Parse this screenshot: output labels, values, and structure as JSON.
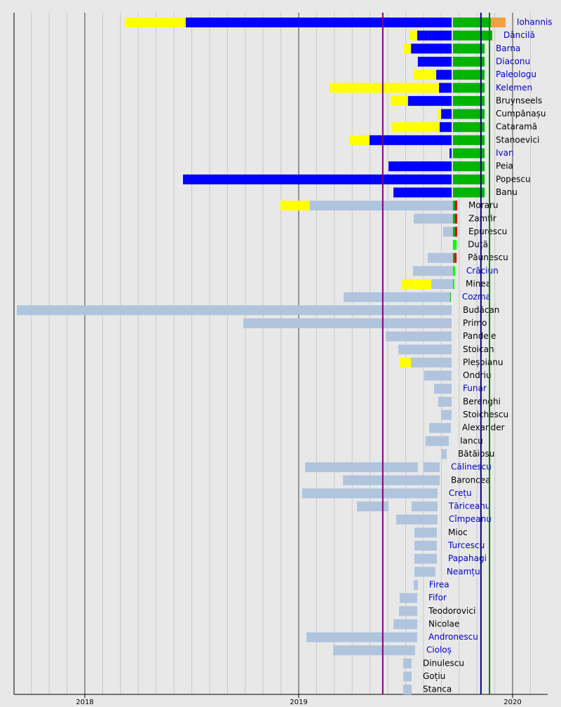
{
  "chart_data": {
    "type": "timeline",
    "xlim": [
      2017.669,
      2020.164
    ],
    "xticks": [
      2018,
      2019,
      2020
    ],
    "minor_grid_per_tick": 12,
    "markers": [
      {
        "value": 2019.393,
        "color": "#800080"
      },
      {
        "value": 2019.852,
        "color": "#000080"
      },
      {
        "value": 2019.892,
        "color": "#008000"
      }
    ],
    "rows": [
      {
        "name": "Iohannis",
        "label_color": "#0000cc",
        "segments": [
          [
            2018.187,
            2018.472,
            "#ffff00"
          ],
          [
            2018.472,
            2019.715,
            "#0000ff"
          ],
          [
            2019.721,
            2019.898,
            "#00b400"
          ],
          [
            2019.898,
            2019.967,
            "#f4a040"
          ]
        ]
      },
      {
        "name": "Dăncilă",
        "label_color": "#0000cc",
        "segments": [
          [
            2019.518,
            2019.554,
            "#ffff00"
          ],
          [
            2019.554,
            2019.715,
            "#0000ff"
          ],
          [
            2019.721,
            2019.905,
            "#00b400"
          ]
        ]
      },
      {
        "name": "Barna",
        "label_color": "#0000cc",
        "segments": [
          [
            2019.492,
            2019.525,
            "#ffff00"
          ],
          [
            2019.525,
            2019.715,
            "#0000ff"
          ],
          [
            2019.721,
            2019.869,
            "#00b400"
          ]
        ]
      },
      {
        "name": "Diaconu",
        "label_color": "#0000cc",
        "segments": [
          [
            2019.557,
            2019.715,
            "#0000ff"
          ],
          [
            2019.721,
            2019.869,
            "#00b400"
          ]
        ]
      },
      {
        "name": "Paleologu",
        "label_color": "#0000cc",
        "segments": [
          [
            2019.538,
            2019.643,
            "#ffff00"
          ],
          [
            2019.643,
            2019.715,
            "#0000ff"
          ],
          [
            2019.721,
            2019.869,
            "#00b400"
          ]
        ]
      },
      {
        "name": "Kelemen",
        "label_color": "#0000cc",
        "segments": [
          [
            2019.144,
            2019.656,
            "#ffff00"
          ],
          [
            2019.656,
            2019.715,
            "#0000ff"
          ],
          [
            2019.721,
            2019.869,
            "#00b400"
          ]
        ]
      },
      {
        "name": "Bruynseels",
        "label_color": "#000000",
        "segments": [
          [
            2019.43,
            2019.511,
            "#ffff00"
          ],
          [
            2019.511,
            2019.715,
            "#0000ff"
          ],
          [
            2019.721,
            2019.869,
            "#00b400"
          ]
        ]
      },
      {
        "name": "Cumpănașu",
        "label_color": "#000000",
        "segments": [
          [
            2019.652,
            2019.666,
            "#ffff00"
          ],
          [
            2019.666,
            2019.715,
            "#0000ff"
          ],
          [
            2019.721,
            2019.869,
            "#00b400"
          ]
        ]
      },
      {
        "name": "Cataramă",
        "label_color": "#000000",
        "segments": [
          [
            2019.436,
            2019.659,
            "#ffff00"
          ],
          [
            2019.659,
            2019.715,
            "#0000ff"
          ],
          [
            2019.721,
            2019.869,
            "#00b400"
          ]
        ]
      },
      {
        "name": "Stanoevici",
        "label_color": "#000000",
        "segments": [
          [
            2019.236,
            2019.331,
            "#ffff00"
          ],
          [
            2019.331,
            2019.715,
            "#0000ff"
          ],
          [
            2019.721,
            2019.869,
            "#00b400"
          ]
        ]
      },
      {
        "name": "Ivan",
        "label_color": "#0000cc",
        "segments": [
          [
            2019.705,
            2019.715,
            "#0000ff"
          ],
          [
            2019.721,
            2019.869,
            "#00b400"
          ]
        ]
      },
      {
        "name": "Peia",
        "label_color": "#000000",
        "segments": [
          [
            2019.42,
            2019.715,
            "#0000ff"
          ],
          [
            2019.721,
            2019.869,
            "#00b400"
          ]
        ]
      },
      {
        "name": "Popescu",
        "label_color": "#000000",
        "segments": [
          [
            2018.459,
            2019.715,
            "#0000ff"
          ],
          [
            2019.721,
            2019.869,
            "#00b400"
          ]
        ]
      },
      {
        "name": "Banu",
        "label_color": "#000000",
        "segments": [
          [
            2019.443,
            2019.715,
            "#0000ff"
          ],
          [
            2019.721,
            2019.869,
            "#00b400"
          ]
        ]
      },
      {
        "name": "Moraru",
        "label_color": "#000000",
        "segments": [
          [
            2018.915,
            2019.052,
            "#ffff00"
          ],
          [
            2019.052,
            2019.721,
            "#b0c4de"
          ],
          [
            2019.721,
            2019.731,
            "#00b400"
          ],
          [
            2019.731,
            2019.741,
            "#e00000"
          ]
        ]
      },
      {
        "name": "Zamfir",
        "label_color": "#000000",
        "segments": [
          [
            2019.538,
            2019.721,
            "#b0c4de"
          ],
          [
            2019.721,
            2019.731,
            "#00b400"
          ],
          [
            2019.731,
            2019.741,
            "#e00000"
          ]
        ]
      },
      {
        "name": "Epurescu",
        "label_color": "#000000",
        "segments": [
          [
            2019.675,
            2019.721,
            "#b0c4de"
          ],
          [
            2019.721,
            2019.731,
            "#00b400"
          ],
          [
            2019.731,
            2019.741,
            "#e00000"
          ]
        ]
      },
      {
        "name": "Duță",
        "label_color": "#000000",
        "segments": [
          [
            2019.721,
            2019.738,
            "#00ff00"
          ]
        ]
      },
      {
        "name": "Păunescu",
        "label_color": "#000000",
        "segments": [
          [
            2019.603,
            2019.721,
            "#b0c4de"
          ],
          [
            2019.721,
            2019.728,
            "#00b400"
          ],
          [
            2019.728,
            2019.738,
            "#e00000"
          ]
        ]
      },
      {
        "name": "Crăciun",
        "label_color": "#0000cc",
        "segments": [
          [
            2019.534,
            2019.721,
            "#b0c4de"
          ],
          [
            2019.721,
            2019.731,
            "#00ff00"
          ]
        ]
      },
      {
        "name": "Minea",
        "label_color": "#000000",
        "segments": [
          [
            2019.482,
            2019.62,
            "#ffff00"
          ],
          [
            2019.62,
            2019.721,
            "#b0c4de"
          ],
          [
            2019.721,
            2019.728,
            "#00ff00"
          ]
        ]
      },
      {
        "name": "Cozma",
        "label_color": "#0000cc",
        "segments": [
          [
            2019.21,
            2019.708,
            "#b0c4de"
          ],
          [
            2019.708,
            2019.711,
            "#00b400"
          ]
        ]
      },
      {
        "name": "Budăcan",
        "label_color": "#000000",
        "segments": [
          [
            2017.682,
            2019.715,
            "#b0c4de"
          ]
        ]
      },
      {
        "name": "Primo",
        "label_color": "#000000",
        "segments": [
          [
            2018.741,
            2019.715,
            "#b0c4de"
          ]
        ]
      },
      {
        "name": "Pandele",
        "label_color": "#000000",
        "segments": [
          [
            2019.407,
            2019.715,
            "#b0c4de"
          ]
        ]
      },
      {
        "name": "Stoican",
        "label_color": "#000000",
        "segments": [
          [
            2019.466,
            2019.715,
            "#b0c4de"
          ]
        ]
      },
      {
        "name": "Pleșoianu",
        "label_color": "#000000",
        "segments": [
          [
            2019.472,
            2019.525,
            "#ffff00"
          ],
          [
            2019.525,
            2019.715,
            "#b0c4de"
          ]
        ]
      },
      {
        "name": "Ondriu",
        "label_color": "#000000",
        "segments": [
          [
            2019.587,
            2019.715,
            "#b0c4de"
          ]
        ]
      },
      {
        "name": "Funar",
        "label_color": "#0000cc",
        "segments": [
          [
            2019.633,
            2019.715,
            "#b0c4de"
          ]
        ]
      },
      {
        "name": "Berenghi",
        "label_color": "#000000",
        "segments": [
          [
            2019.652,
            2019.715,
            "#b0c4de"
          ]
        ]
      },
      {
        "name": "Stoichescu",
        "label_color": "#000000",
        "segments": [
          [
            2019.666,
            2019.715,
            "#b0c4de"
          ]
        ]
      },
      {
        "name": "Alexander",
        "label_color": "#000000",
        "segments": [
          [
            2019.61,
            2019.711,
            "#b0c4de"
          ]
        ]
      },
      {
        "name": "Iancu",
        "label_color": "#000000",
        "segments": [
          [
            2019.593,
            2019.702,
            "#b0c4de"
          ]
        ]
      },
      {
        "name": "Bătăiosu",
        "label_color": "#000000",
        "segments": [
          [
            2019.669,
            2019.692,
            "#b0c4de"
          ]
        ]
      },
      {
        "name": "Călinescu",
        "label_color": "#0000cc",
        "segments": [
          [
            2019.03,
            2019.557,
            "#b0c4de"
          ],
          [
            2019.584,
            2019.659,
            "#b0c4de"
          ]
        ]
      },
      {
        "name": "Baroncea",
        "label_color": "#000000",
        "segments": [
          [
            2019.207,
            2019.659,
            "#b0c4de"
          ]
        ]
      },
      {
        "name": "Crețu",
        "label_color": "#0000cc",
        "segments": [
          [
            2019.016,
            2019.649,
            "#b0c4de"
          ]
        ]
      },
      {
        "name": "Tăriceanu",
        "label_color": "#0000cc",
        "segments": [
          [
            2019.272,
            2019.42,
            "#b0c4de"
          ],
          [
            2019.528,
            2019.649,
            "#b0c4de"
          ]
        ]
      },
      {
        "name": "Cîmpeanu",
        "label_color": "#0000cc",
        "segments": [
          [
            2019.456,
            2019.649,
            "#b0c4de"
          ]
        ]
      },
      {
        "name": "Mioc",
        "label_color": "#000000",
        "segments": [
          [
            2019.541,
            2019.646,
            "#b0c4de"
          ]
        ]
      },
      {
        "name": "Turcescu",
        "label_color": "#0000cc",
        "segments": [
          [
            2019.541,
            2019.646,
            "#b0c4de"
          ]
        ]
      },
      {
        "name": "Papahagi",
        "label_color": "#0000cc",
        "segments": [
          [
            2019.541,
            2019.646,
            "#b0c4de"
          ]
        ]
      },
      {
        "name": "Neamțu",
        "label_color": "#0000cc",
        "segments": [
          [
            2019.541,
            2019.639,
            "#b0c4de"
          ]
        ]
      },
      {
        "name": "Firea",
        "label_color": "#0000cc",
        "segments": [
          [
            2019.538,
            2019.557,
            "#b0c4de"
          ]
        ]
      },
      {
        "name": "Fifor",
        "label_color": "#0000cc",
        "segments": [
          [
            2019.472,
            2019.554,
            "#b0c4de"
          ]
        ]
      },
      {
        "name": "Teodorovici",
        "label_color": "#000000",
        "segments": [
          [
            2019.469,
            2019.554,
            "#b0c4de"
          ]
        ]
      },
      {
        "name": "Nicolae",
        "label_color": "#000000",
        "segments": [
          [
            2019.443,
            2019.554,
            "#b0c4de"
          ]
        ]
      },
      {
        "name": "Andronescu",
        "label_color": "#0000cc",
        "segments": [
          [
            2019.036,
            2019.554,
            "#b0c4de"
          ]
        ]
      },
      {
        "name": "Cioloș",
        "label_color": "#0000cc",
        "segments": [
          [
            2019.161,
            2019.544,
            "#b0c4de"
          ]
        ]
      },
      {
        "name": "Dinulescu",
        "label_color": "#000000",
        "segments": [
          [
            2019.489,
            2019.528,
            "#b0c4de"
          ]
        ]
      },
      {
        "name": "Goțiu",
        "label_color": "#000000",
        "segments": [
          [
            2019.489,
            2019.528,
            "#b0c4de"
          ]
        ]
      },
      {
        "name": "Stanca",
        "label_color": "#000000",
        "segments": [
          [
            2019.489,
            2019.528,
            "#b0c4de"
          ]
        ]
      }
    ]
  }
}
